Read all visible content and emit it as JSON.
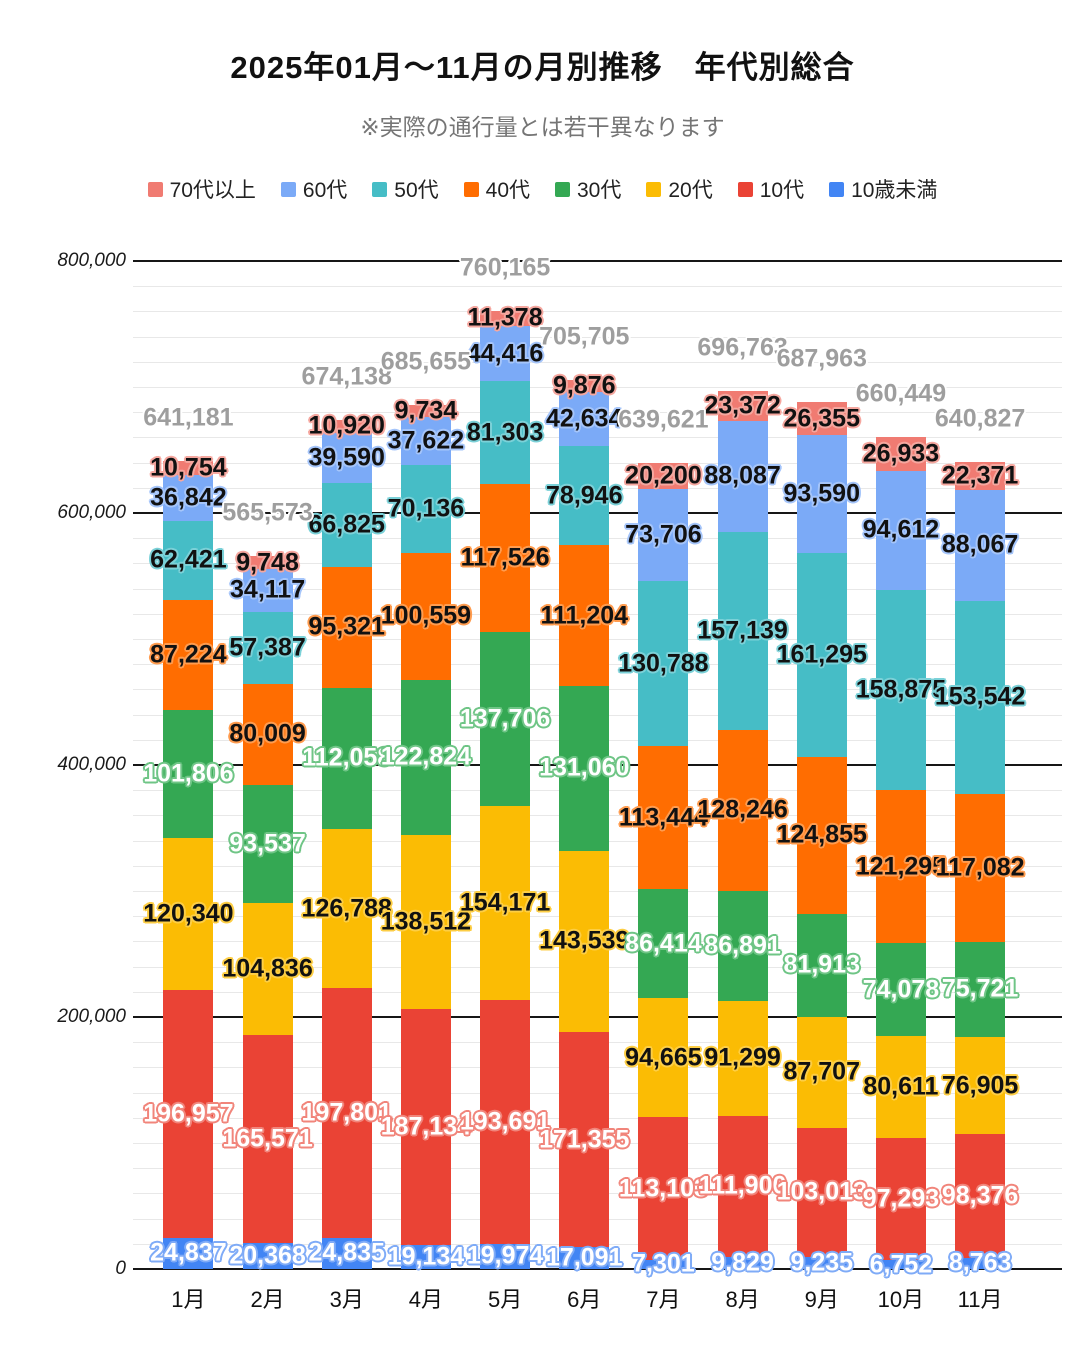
{
  "chart_data": {
    "type": "bar",
    "stacked": true,
    "title": "2025年01月～11月の月別推移　年代別総合",
    "subtitle": "※実際の通行量とは若干異なります",
    "legend_position": "top",
    "grid": true,
    "categories": [
      "1月",
      "2月",
      "3月",
      "4月",
      "5月",
      "6月",
      "7月",
      "8月",
      "9月",
      "10月",
      "11月"
    ],
    "series": [
      {
        "name": "10歳未満",
        "color": "#4285F4",
        "label_text_color": "#ffffff",
        "halo_color": "#7FABF7",
        "values": [
          24837,
          20368,
          24835,
          19134,
          19974,
          17091,
          7301,
          9829,
          9235,
          6752,
          8763
        ]
      },
      {
        "name": "10代",
        "color": "#EA4335",
        "label_text_color": "#ffffff",
        "halo_color": "#F1857B",
        "values": [
          196957,
          165571,
          197801,
          187134,
          193691,
          171355,
          113103,
          111900,
          103013,
          97293,
          98376
        ]
      },
      {
        "name": "20代",
        "color": "#FBBC04",
        "label_text_color": "#111111",
        "halo_color": "#FDCE45",
        "values": [
          120340,
          104836,
          126788,
          138512,
          154171,
          143539,
          94665,
          91299,
          87707,
          80611,
          76905
        ]
      },
      {
        "name": "30代",
        "color": "#34A853",
        "label_text_color": "#ffffff",
        "halo_color": "#6FC586",
        "values": [
          101806,
          93537,
          112058,
          122824,
          137706,
          131060,
          86414,
          86891,
          81913,
          74078,
          75721
        ]
      },
      {
        "name": "40代",
        "color": "#FF6D01",
        "label_text_color": "#111111",
        "halo_color": "#FF9C4F",
        "values": [
          87224,
          80009,
          95321,
          100559,
          117526,
          111204,
          113444,
          128246,
          124855,
          121295,
          117082
        ]
      },
      {
        "name": "50代",
        "color": "#46BDC6",
        "label_text_color": "#111111",
        "halo_color": "#7BD1D8",
        "values": [
          62421,
          57387,
          66825,
          70136,
          81303,
          78946,
          130788,
          157139,
          161295,
          158875,
          153542
        ]
      },
      {
        "name": "60代",
        "color": "#7BAAF7",
        "label_text_color": "#111111",
        "halo_color": "#A5C5FA",
        "values": [
          36842,
          34117,
          39590,
          37622,
          44416,
          42634,
          73706,
          88087,
          93590,
          94612,
          88067
        ]
      },
      {
        "name": "70代以上",
        "color": "#F07B72",
        "label_text_color": "#111111",
        "halo_color": "#F5A79F",
        "values": [
          10754,
          9748,
          10920,
          9734,
          11378,
          9876,
          20200,
          23372,
          26355,
          26933,
          22371
        ]
      }
    ],
    "totals": [
      641181,
      565573,
      674138,
      685655,
      760165,
      705705,
      639621,
      696763,
      687963,
      660449,
      640827
    ],
    "totals_color": "#9E9E9E",
    "y_axis": {
      "min": 0,
      "max": 800000,
      "major_step": 200000,
      "minor_step": 20000,
      "tick_labels": [
        "0",
        "200,000",
        "400,000",
        "600,000",
        "800,000"
      ]
    },
    "legend_order_top_to_bottom": [
      "70代以上",
      "60代",
      "50代",
      "40代",
      "30代",
      "20代",
      "10代",
      "10歳未満"
    ]
  }
}
